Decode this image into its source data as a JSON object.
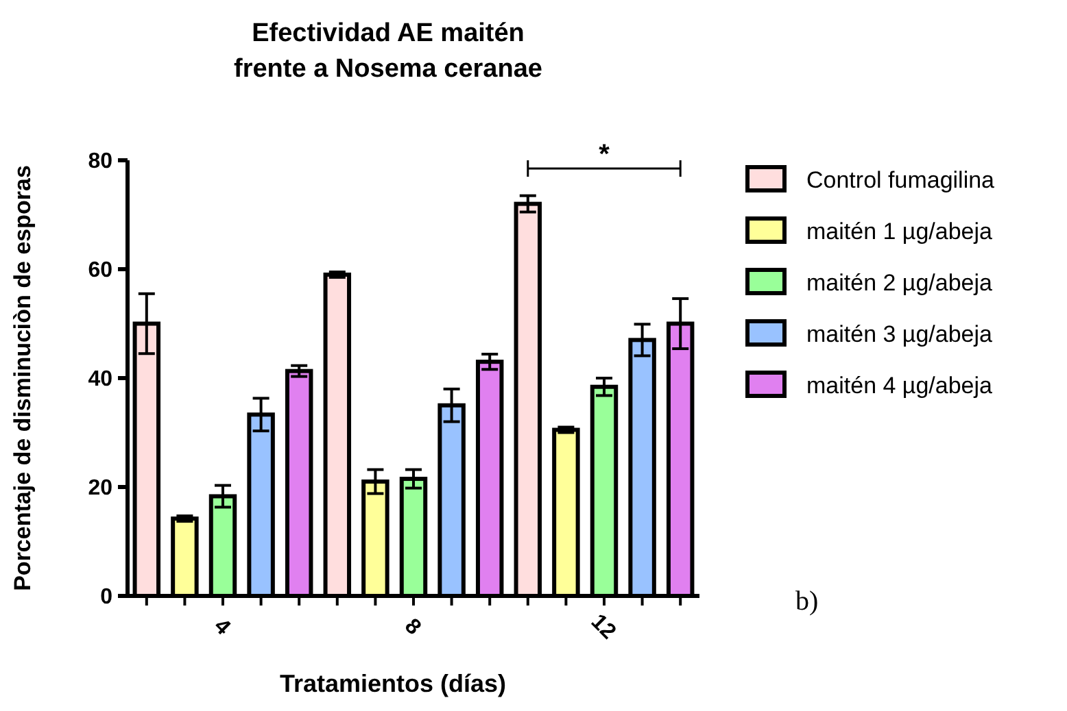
{
  "chart_data": {
    "type": "bar",
    "title": "Efectividad AE maitén\nfrente a Nosema ceranae",
    "xlabel": "Tratamientos (días)",
    "ylabel": "Porcentaje de disminuciòn de esporas",
    "categories": [
      "4",
      "8",
      "12"
    ],
    "series": [
      {
        "name": "Control fumagilina",
        "color": "#ffdede",
        "values": [
          50,
          59,
          72
        ],
        "errors": [
          5.5,
          0.5,
          1.5
        ]
      },
      {
        "name": "maitén 1 µg/abeja",
        "color": "#ffff99",
        "values": [
          14.2,
          21,
          30.5
        ],
        "errors": [
          0.5,
          2.2,
          0.5
        ]
      },
      {
        "name": "maitén 2 µg/abeja",
        "color": "#99ff99",
        "values": [
          18.3,
          21.5,
          38.4
        ],
        "errors": [
          2,
          1.7,
          1.6
        ]
      },
      {
        "name": "maitén 3 µg/abeja",
        "color": "#99c2ff",
        "values": [
          33.3,
          35,
          47
        ],
        "errors": [
          3,
          3,
          2.9
        ]
      },
      {
        "name": "maitén 4 µg/abeja",
        "color": "#e080f0",
        "values": [
          41.3,
          43,
          50
        ],
        "errors": [
          1,
          1.4,
          4.6
        ]
      }
    ],
    "ylim": [
      0,
      80
    ],
    "yticks": [
      0,
      20,
      40,
      60,
      80
    ],
    "grid": false,
    "legend": "right",
    "annotations": [
      "*",
      "b)"
    ]
  }
}
